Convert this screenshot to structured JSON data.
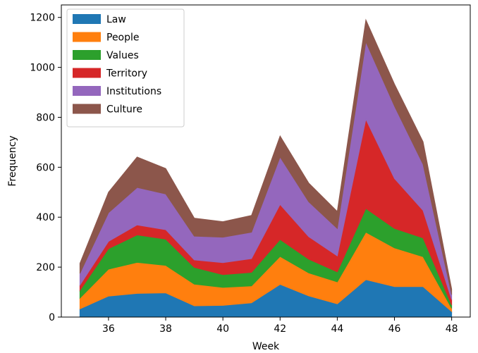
{
  "chart_data": {
    "type": "area",
    "stacked": true,
    "title": "",
    "xlabel": "Week",
    "ylabel": "Frequency",
    "x": [
      35,
      36,
      37,
      38,
      39,
      40,
      41,
      42,
      43,
      44,
      45,
      46,
      47,
      48
    ],
    "xlim": [
      34.35,
      48.65
    ],
    "ylim": [
      0,
      1250
    ],
    "xticks": [
      36,
      38,
      40,
      42,
      44,
      46,
      48
    ],
    "yticks": [
      0,
      200,
      400,
      600,
      800,
      1000,
      1200
    ],
    "grid": false,
    "legend_position": "upper-left",
    "series": [
      {
        "name": "Law",
        "color": "#1f77b4",
        "values": [
          33,
          84,
          95,
          97,
          45,
          47,
          57,
          131,
          85,
          53,
          150,
          122,
          122,
          22
        ]
      },
      {
        "name": "People",
        "color": "#ff7f0e",
        "values": [
          43,
          108,
          124,
          110,
          87,
          72,
          68,
          112,
          92,
          88,
          190,
          155,
          120,
          13
        ]
      },
      {
        "name": "Values",
        "color": "#2ca02c",
        "values": [
          31,
          82,
          110,
          105,
          67,
          51,
          54,
          68,
          55,
          40,
          95,
          78,
          75,
          13
        ]
      },
      {
        "name": "Territory",
        "color": "#d62728",
        "values": [
          21,
          29,
          40,
          38,
          30,
          48,
          55,
          140,
          90,
          64,
          357,
          200,
          110,
          22
        ]
      },
      {
        "name": "Institutions",
        "color": "#9467bd",
        "values": [
          47,
          115,
          150,
          143,
          95,
          102,
          106,
          190,
          140,
          110,
          310,
          290,
          185,
          20
        ]
      },
      {
        "name": "Culture",
        "color": "#8c564b",
        "values": [
          40,
          82,
          122,
          102,
          72,
          62,
          67,
          84,
          75,
          68,
          88,
          88,
          90,
          22
        ]
      }
    ]
  }
}
